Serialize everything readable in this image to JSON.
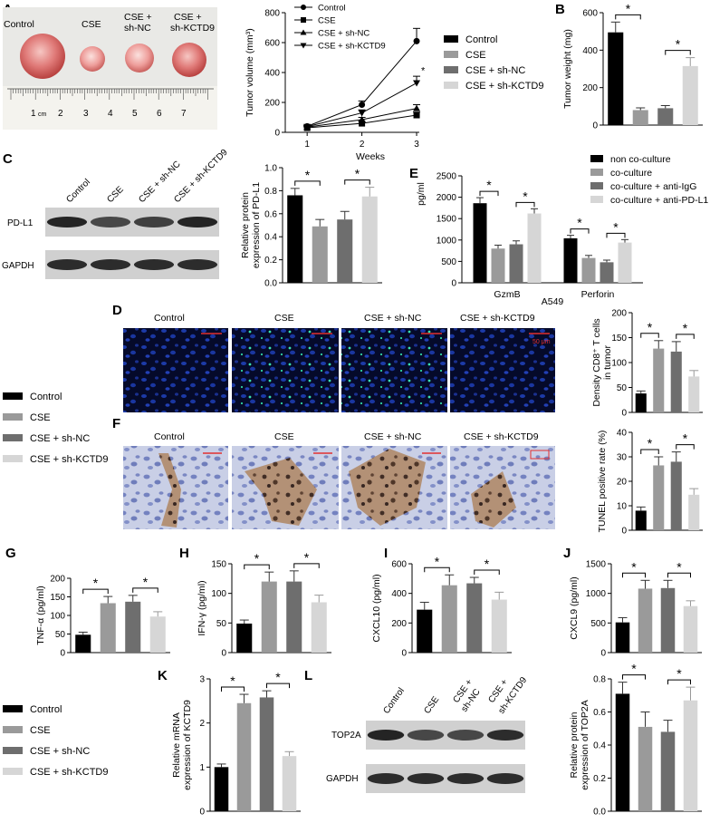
{
  "colors": {
    "black": "#000000",
    "dgrey": "#6e6e6e",
    "mgrey": "#9a9a9a",
    "lgrey": "#d6d6d6"
  },
  "panel_labels": {
    "A": "A",
    "B": "B",
    "C": "C",
    "D": "D",
    "E": "E",
    "F": "F",
    "G": "G",
    "H": "H",
    "I": "I",
    "J": "J",
    "K": "K",
    "L": "L"
  },
  "group_names": [
    "Control",
    "CSE",
    "CSE + sh-NC",
    "CSE + sh-KCTD9"
  ],
  "panel_A": {
    "photo_labels": [
      "Control",
      "CSE",
      "CSE +\nsh-NC",
      "CSE +\nsh-KCTD9"
    ],
    "ruler_numbers": [
      "1",
      "cm",
      "2",
      "3",
      "4",
      "5",
      "6",
      "7"
    ]
  },
  "panel_C": {
    "lane_labels": [
      "Control",
      "CSE",
      "CSE + sh-NC",
      "CSE + sh-KCTD9"
    ],
    "rows": [
      "PD-L1",
      "GAPDH"
    ]
  },
  "panel_D": {
    "headers": [
      "Control",
      "CSE",
      "CSE + sh-NC",
      "CSE + sh-KCTD9"
    ],
    "scalebar": "50 μm"
  },
  "panel_E_legend": [
    "non co-culture",
    "co-culture",
    "co-culture + anti-IgG",
    "co-culture + anti-PD-L1"
  ],
  "panel_F": {
    "headers": [
      "Control",
      "CSE",
      "CSE + sh-NC",
      "CSE + sh-KCTD9"
    ]
  },
  "panel_L": {
    "lane_labels": [
      "Control",
      "CSE",
      "CSE +\nsh-NC",
      "CSE +\nsh-KCTD9"
    ],
    "rows": [
      "TOP2A",
      "GAPDH"
    ]
  },
  "chart_data": [
    {
      "id": "A-line",
      "type": "line",
      "x": [
        1,
        2,
        3
      ],
      "xlabel": "Weeks",
      "ylabel": "Tumor volume (mm³)",
      "ylim": [
        0,
        800
      ],
      "yticks": [
        0,
        200,
        400,
        600,
        800
      ],
      "series": [
        {
          "name": "Control",
          "values": [
            40,
            185,
            610
          ],
          "err": [
            8,
            25,
            85
          ],
          "marker": "circle"
        },
        {
          "name": "CSE",
          "values": [
            30,
            60,
            115
          ],
          "err": [
            6,
            12,
            20
          ],
          "marker": "square"
        },
        {
          "name": "CSE + sh-NC",
          "values": [
            35,
            85,
            160
          ],
          "err": [
            6,
            15,
            25
          ],
          "marker": "triangle-up"
        },
        {
          "name": "CSE + sh-KCTD9",
          "values": [
            38,
            130,
            330
          ],
          "err": [
            7,
            20,
            45
          ],
          "marker": "triangle-down"
        }
      ],
      "annotations": [
        "*"
      ]
    },
    {
      "id": "A-legend",
      "type": "legend",
      "labels": [
        "Control",
        "CSE",
        "CSE + sh-NC",
        "CSE + sh-KCTD9"
      ]
    },
    {
      "id": "B",
      "type": "bar",
      "categories": [
        "Control",
        "CSE",
        "CSE + sh-NC",
        "CSE + sh-KCTD9"
      ],
      "values": [
        495,
        80,
        90,
        315
      ],
      "err": [
        55,
        12,
        14,
        45
      ],
      "ylabel": "Tumor weight (mg)",
      "ylim": [
        0,
        600
      ],
      "yticks": [
        0,
        200,
        400,
        600
      ],
      "annotations": [
        "*",
        "*"
      ]
    },
    {
      "id": "C",
      "type": "bar",
      "categories": [
        "Control",
        "CSE",
        "CSE + sh-NC",
        "CSE + sh-KCTD9"
      ],
      "values": [
        0.76,
        0.49,
        0.55,
        0.75
      ],
      "err": [
        0.06,
        0.06,
        0.07,
        0.08
      ],
      "ylabel": "Relative protein\nexpression of PD-L1",
      "ylim": [
        0,
        1.0
      ],
      "yticks": [
        0.0,
        0.2,
        0.4,
        0.6,
        0.8,
        1.0
      ],
      "annotations": [
        "*",
        "*"
      ]
    },
    {
      "id": "E",
      "type": "bar",
      "categories": [
        "GzmB",
        "Perforin"
      ],
      "xlabel": "A549",
      "ylabel": "pg/ml",
      "ylim": [
        0,
        2500
      ],
      "yticks": [
        0,
        500,
        1000,
        1500,
        2000,
        2500
      ],
      "series": [
        {
          "name": "non co-culture",
          "values": [
            1860,
            1040
          ],
          "err": [
            130,
            70
          ]
        },
        {
          "name": "co-culture",
          "values": [
            800,
            580
          ],
          "err": [
            80,
            60
          ]
        },
        {
          "name": "co-culture + anti-IgG",
          "values": [
            900,
            480
          ],
          "err": [
            80,
            50
          ]
        },
        {
          "name": "co-culture + anti-PD-L1",
          "values": [
            1620,
            940
          ],
          "err": [
            110,
            70
          ]
        }
      ],
      "annotations": [
        "*",
        "*",
        "*",
        "*"
      ]
    },
    {
      "id": "D",
      "type": "bar",
      "categories": [
        "Control",
        "CSE",
        "CSE + sh-NC",
        "CSE + sh-KCTD9"
      ],
      "values": [
        38,
        128,
        122,
        72
      ],
      "err": [
        5,
        16,
        20,
        12
      ],
      "ylabel": "Density CD8⁺ T cells\nin tumor",
      "ylim": [
        0,
        200
      ],
      "yticks": [
        0,
        50,
        100,
        150,
        200
      ],
      "annotations": [
        "*",
        "*"
      ]
    },
    {
      "id": "F",
      "type": "bar",
      "categories": [
        "Control",
        "CSE",
        "CSE + sh-NC",
        "CSE + sh-KCTD9"
      ],
      "values": [
        8,
        26.5,
        28,
        14.5
      ],
      "err": [
        1.5,
        3.5,
        4,
        2.5
      ],
      "ylabel": "TUNEL positive rate (%)",
      "ylim": [
        0,
        40
      ],
      "yticks": [
        0,
        10,
        20,
        30,
        40
      ],
      "annotations": [
        "*",
        "*"
      ]
    },
    {
      "id": "G",
      "type": "bar",
      "categories": [
        "Control",
        "CSE",
        "CSE + sh-NC",
        "CSE + sh-KCTD9"
      ],
      "values": [
        48,
        133,
        137,
        97
      ],
      "err": [
        7,
        18,
        17,
        13
      ],
      "ylabel": "TNF-α (pg/ml)",
      "ylim": [
        0,
        200
      ],
      "yticks": [
        0,
        50,
        100,
        150,
        200
      ],
      "annotations": [
        "*",
        "*"
      ]
    },
    {
      "id": "H",
      "type": "bar",
      "categories": [
        "Control",
        "CSE",
        "CSE + sh-NC",
        "CSE + sh-KCTD9"
      ],
      "values": [
        49,
        120,
        120,
        85
      ],
      "err": [
        6,
        16,
        18,
        12
      ],
      "ylabel": "IFN-γ (pg/ml)",
      "ylim": [
        0,
        150
      ],
      "yticks": [
        0,
        50,
        100,
        150
      ],
      "annotations": [
        "*",
        "*"
      ]
    },
    {
      "id": "I",
      "type": "bar",
      "categories": [
        "Control",
        "CSE",
        "CSE + sh-NC",
        "CSE + sh-KCTD9"
      ],
      "values": [
        290,
        455,
        468,
        358
      ],
      "err": [
        50,
        70,
        40,
        50
      ],
      "ylabel": "CXCL10 (pg/ml)",
      "ylim": [
        0,
        600
      ],
      "yticks": [
        0,
        200,
        400,
        600
      ],
      "annotations": [
        "*",
        "*"
      ]
    },
    {
      "id": "J",
      "type": "bar",
      "categories": [
        "Control",
        "CSE",
        "CSE + sh-NC",
        "CSE + sh-KCTD9"
      ],
      "values": [
        510,
        1080,
        1090,
        785
      ],
      "err": [
        80,
        140,
        130,
        90
      ],
      "ylabel": "CXCL9 (pg/ml)",
      "ylim": [
        0,
        1500
      ],
      "yticks": [
        0,
        500,
        1000,
        1500
      ],
      "annotations": [
        "*",
        "*"
      ]
    },
    {
      "id": "K",
      "type": "bar",
      "categories": [
        "Control",
        "CSE",
        "CSE + sh-NC",
        "CSE + sh-KCTD9"
      ],
      "values": [
        1.0,
        2.45,
        2.58,
        1.25
      ],
      "err": [
        0.07,
        0.2,
        0.15,
        0.1
      ],
      "ylabel": "Relative mRNA\nexpression of KCTD9",
      "ylim": [
        0,
        3
      ],
      "yticks": [
        0,
        1,
        2,
        3
      ],
      "annotations": [
        "*",
        "*"
      ]
    },
    {
      "id": "L",
      "type": "bar",
      "categories": [
        "Control",
        "CSE",
        "CSE + sh-NC",
        "CSE + sh-KCTD9"
      ],
      "values": [
        0.71,
        0.51,
        0.48,
        0.67
      ],
      "err": [
        0.07,
        0.09,
        0.07,
        0.08
      ],
      "ylabel": "Relative protein\nexpression of TOP2A",
      "ylim": [
        0,
        0.8
      ],
      "yticks": [
        0.0,
        0.2,
        0.4,
        0.6,
        0.8
      ],
      "annotations": [
        "*",
        "*"
      ]
    }
  ]
}
